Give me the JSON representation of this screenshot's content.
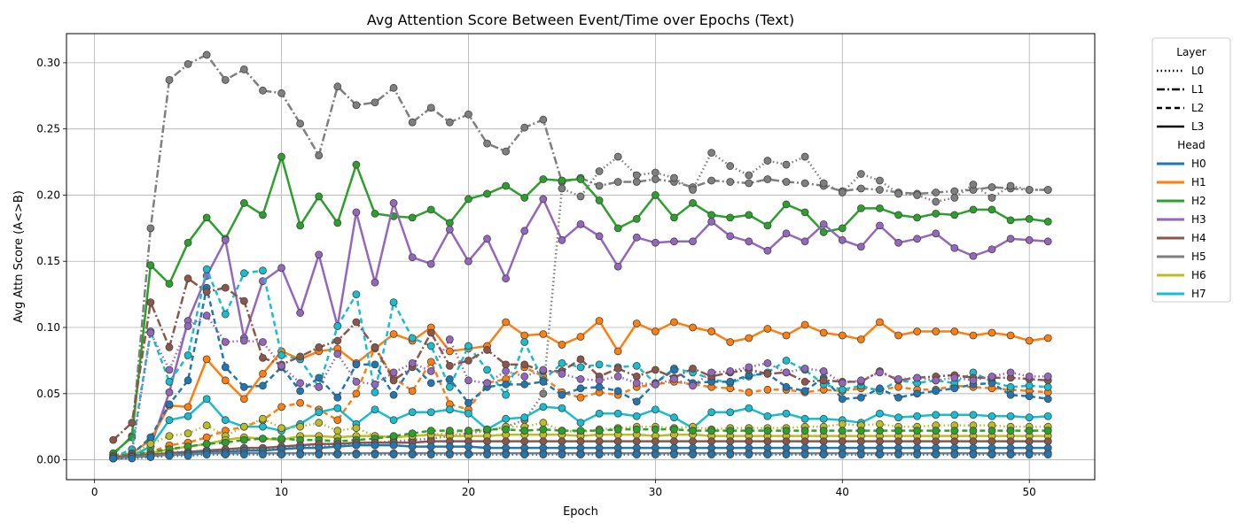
{
  "chart_data": {
    "type": "line",
    "title": "Avg Attention Score Between Event/Time over Epochs (Text)",
    "xlabel": "Epoch",
    "ylabel": "Avg Attn Score (A<>B)",
    "xlim": [
      -1.5,
      53.5
    ],
    "ylim": [
      -0.015,
      0.322
    ],
    "xticks": [
      0,
      10,
      20,
      30,
      40,
      50
    ],
    "yticks": [
      0.0,
      0.05,
      0.1,
      0.15,
      0.2,
      0.25,
      0.3
    ],
    "grid": true,
    "legend_position": "outside-right",
    "legend": {
      "layer_title": "Layer",
      "layers": [
        {
          "label": "L0",
          "dash": "dotted"
        },
        {
          "label": "L1",
          "dash": "dashdot"
        },
        {
          "label": "L2",
          "dash": "dashed"
        },
        {
          "label": "L3",
          "dash": "solid"
        }
      ],
      "head_title": "Head",
      "heads": [
        {
          "label": "H0",
          "color": "#1f77b4"
        },
        {
          "label": "H1",
          "color": "#ff7f0e"
        },
        {
          "label": "H2",
          "color": "#2ca02c"
        },
        {
          "label": "H3",
          "color": "#9467bd"
        },
        {
          "label": "H4",
          "color": "#8c564b"
        },
        {
          "label": "H5",
          "color": "#7f7f7f"
        },
        {
          "label": "H6",
          "color": "#bcbd22"
        },
        {
          "label": "H7",
          "color": "#17becf"
        }
      ]
    },
    "x": [
      1,
      2,
      3,
      4,
      5,
      6,
      7,
      8,
      9,
      10,
      11,
      12,
      13,
      14,
      15,
      16,
      17,
      18,
      19,
      20,
      21,
      22,
      23,
      24,
      25,
      26,
      27,
      28,
      29,
      30,
      31,
      32,
      33,
      34,
      35,
      36,
      37,
      38,
      39,
      40,
      41,
      42,
      43,
      44,
      45,
      46,
      47,
      48,
      49,
      50,
      51
    ],
    "series": [
      {
        "head": "H5",
        "layer": "L1",
        "values": [
          0.004,
          0.018,
          0.175,
          0.287,
          0.299,
          0.306,
          0.287,
          0.295,
          0.279,
          0.277,
          0.254,
          0.23,
          0.282,
          0.268,
          0.27,
          0.281,
          0.255,
          0.266,
          0.255,
          0.261,
          0.239,
          0.233,
          0.251,
          0.257,
          0.21,
          0.213,
          0.207,
          0.21,
          0.21,
          0.212,
          0.21,
          0.206,
          0.211,
          0.21,
          0.209,
          0.212,
          0.21,
          0.209,
          0.207,
          0.203,
          0.205,
          0.204,
          0.202,
          0.201,
          0.202,
          0.203,
          0.204,
          0.206,
          0.205,
          0.204,
          0.204
        ]
      },
      {
        "head": "H5",
        "layer": "L0",
        "values": [
          0.004,
          0.004,
          0.005,
          0.006,
          0.006,
          0.007,
          0.007,
          0.008,
          0.008,
          0.009,
          0.01,
          0.01,
          0.011,
          0.012,
          0.013,
          0.014,
          0.015,
          0.016,
          0.018,
          0.02,
          0.022,
          0.025,
          0.03,
          0.05,
          0.205,
          0.199,
          0.218,
          0.229,
          0.215,
          0.217,
          0.213,
          0.204,
          0.232,
          0.222,
          0.215,
          0.226,
          0.223,
          0.229,
          0.209,
          0.202,
          0.216,
          0.211,
          0.201,
          0.2,
          0.195,
          0.198,
          0.208,
          0.198,
          0.207,
          0.204,
          0.204
        ]
      },
      {
        "head": "H2",
        "layer": "L3",
        "values": [
          0.005,
          0.017,
          0.147,
          0.133,
          0.164,
          0.183,
          0.167,
          0.194,
          0.185,
          0.229,
          0.177,
          0.199,
          0.179,
          0.223,
          0.186,
          0.184,
          0.183,
          0.189,
          0.179,
          0.197,
          0.201,
          0.207,
          0.198,
          0.212,
          0.211,
          0.212,
          0.196,
          0.175,
          0.182,
          0.2,
          0.183,
          0.194,
          0.185,
          0.183,
          0.185,
          0.177,
          0.193,
          0.187,
          0.172,
          0.175,
          0.19,
          0.19,
          0.185,
          0.183,
          0.186,
          0.185,
          0.189,
          0.189,
          0.181,
          0.182,
          0.18
        ]
      },
      {
        "head": "H3",
        "layer": "L3",
        "values": [
          0.002,
          0.003,
          0.01,
          0.051,
          0.105,
          0.139,
          0.166,
          0.092,
          0.135,
          0.145,
          0.111,
          0.155,
          0.101,
          0.187,
          0.134,
          0.194,
          0.153,
          0.148,
          0.174,
          0.15,
          0.167,
          0.137,
          0.173,
          0.197,
          0.166,
          0.178,
          0.169,
          0.146,
          0.168,
          0.164,
          0.165,
          0.165,
          0.18,
          0.169,
          0.165,
          0.158,
          0.171,
          0.165,
          0.178,
          0.166,
          0.161,
          0.177,
          0.164,
          0.167,
          0.171,
          0.16,
          0.154,
          0.159,
          0.167,
          0.166,
          0.165
        ]
      },
      {
        "head": "H1",
        "layer": "L3",
        "values": [
          0.002,
          0.005,
          0.015,
          0.041,
          0.04,
          0.076,
          0.06,
          0.046,
          0.065,
          0.082,
          0.076,
          0.082,
          0.084,
          0.073,
          0.084,
          0.095,
          0.09,
          0.1,
          0.082,
          0.084,
          0.086,
          0.104,
          0.094,
          0.095,
          0.087,
          0.093,
          0.105,
          0.082,
          0.103,
          0.097,
          0.104,
          0.1,
          0.097,
          0.089,
          0.092,
          0.099,
          0.094,
          0.102,
          0.096,
          0.094,
          0.091,
          0.104,
          0.094,
          0.097,
          0.097,
          0.097,
          0.094,
          0.096,
          0.094,
          0.09,
          0.092
        ]
      },
      {
        "head": "H1",
        "layer": "L2",
        "values": [
          0.001,
          0.002,
          0.006,
          0.011,
          0.013,
          0.017,
          0.022,
          0.025,
          0.03,
          0.04,
          0.043,
          0.038,
          0.03,
          0.05,
          0.085,
          0.062,
          0.052,
          0.074,
          0.042,
          0.038,
          0.058,
          0.061,
          0.07,
          0.063,
          0.051,
          0.047,
          0.051,
          0.049,
          0.055,
          0.057,
          0.059,
          0.057,
          0.055,
          0.054,
          0.051,
          0.053,
          0.053,
          0.051,
          0.053,
          0.052,
          0.054,
          0.053,
          0.055,
          0.053,
          0.053,
          0.056,
          0.055,
          0.054,
          0.053,
          0.052,
          0.051
        ]
      },
      {
        "head": "H7",
        "layer": "L2",
        "values": [
          0.002,
          0.008,
          0.097,
          0.059,
          0.079,
          0.144,
          0.11,
          0.141,
          0.143,
          0.079,
          0.076,
          0.055,
          0.101,
          0.125,
          0.051,
          0.119,
          0.092,
          0.086,
          0.055,
          0.086,
          0.068,
          0.049,
          0.089,
          0.06,
          0.073,
          0.07,
          0.072,
          0.07,
          0.071,
          0.058,
          0.069,
          0.066,
          0.061,
          0.058,
          0.063,
          0.066,
          0.075,
          0.068,
          0.057,
          0.053,
          0.056,
          0.052,
          0.06,
          0.058,
          0.06,
          0.058,
          0.066,
          0.059,
          0.055,
          0.056,
          0.055
        ]
      },
      {
        "head": "H0",
        "layer": "L2",
        "values": [
          0.001,
          0.004,
          0.017,
          0.042,
          0.06,
          0.13,
          0.07,
          0.055,
          0.056,
          0.07,
          0.052,
          0.062,
          0.047,
          0.072,
          0.072,
          0.049,
          0.072,
          0.058,
          0.061,
          0.043,
          0.055,
          0.057,
          0.057,
          0.059,
          0.049,
          0.054,
          0.055,
          0.052,
          0.044,
          0.058,
          0.068,
          0.058,
          0.059,
          0.059,
          0.064,
          0.065,
          0.055,
          0.052,
          0.062,
          0.046,
          0.047,
          0.054,
          0.047,
          0.05,
          0.052,
          0.054,
          0.057,
          0.058,
          0.049,
          0.048,
          0.046
        ]
      },
      {
        "head": "H4",
        "layer": "L1",
        "values": [
          0.015,
          0.028,
          0.119,
          0.085,
          0.137,
          0.127,
          0.13,
          0.12,
          0.077,
          0.072,
          0.078,
          0.085,
          0.09,
          0.104,
          0.085,
          0.06,
          0.07,
          0.096,
          0.071,
          0.075,
          0.083,
          0.072,
          0.072,
          0.067,
          0.067,
          0.076,
          0.063,
          0.069,
          0.063,
          0.068,
          0.062,
          0.069,
          0.063,
          0.066,
          0.068,
          0.065,
          0.066,
          0.059,
          0.06,
          0.059,
          0.059,
          0.067,
          0.06,
          0.062,
          0.063,
          0.064,
          0.062,
          0.062,
          0.062,
          0.061,
          0.06
        ]
      },
      {
        "head": "H3",
        "layer": "L0",
        "values": [
          0.003,
          0.005,
          0.096,
          0.068,
          0.101,
          0.109,
          0.089,
          0.09,
          0.089,
          0.071,
          0.058,
          0.055,
          0.08,
          0.059,
          0.057,
          0.066,
          0.073,
          0.067,
          0.091,
          0.06,
          0.058,
          0.067,
          0.063,
          0.068,
          0.065,
          0.061,
          0.06,
          0.063,
          0.058,
          0.057,
          0.061,
          0.056,
          0.066,
          0.067,
          0.07,
          0.073,
          0.066,
          0.069,
          0.067,
          0.058,
          0.06,
          0.066,
          0.061,
          0.062,
          0.06,
          0.062,
          0.06,
          0.063,
          0.066,
          0.063,
          0.063
        ]
      },
      {
        "head": "H7",
        "layer": "L3",
        "values": [
          0.001,
          0.003,
          0.01,
          0.03,
          0.033,
          0.046,
          0.03,
          0.025,
          0.025,
          0.022,
          0.027,
          0.036,
          0.039,
          0.027,
          0.038,
          0.03,
          0.036,
          0.036,
          0.038,
          0.035,
          0.023,
          0.031,
          0.032,
          0.04,
          0.039,
          0.028,
          0.035,
          0.035,
          0.033,
          0.038,
          0.032,
          0.024,
          0.036,
          0.036,
          0.039,
          0.033,
          0.035,
          0.031,
          0.031,
          0.03,
          0.028,
          0.035,
          0.032,
          0.033,
          0.034,
          0.034,
          0.034,
          0.033,
          0.033,
          0.032,
          0.033
        ]
      },
      {
        "head": "H6",
        "layer": "L0",
        "values": [
          0.002,
          0.004,
          0.012,
          0.018,
          0.02,
          0.026,
          0.018,
          0.025,
          0.031,
          0.024,
          0.025,
          0.028,
          0.022,
          0.024,
          0.018,
          0.017,
          0.018,
          0.019,
          0.02,
          0.022,
          0.022,
          0.025,
          0.025,
          0.028,
          0.022,
          0.021,
          0.023,
          0.024,
          0.025,
          0.025,
          0.024,
          0.025,
          0.023,
          0.024,
          0.024,
          0.024,
          0.024,
          0.025,
          0.025,
          0.027,
          0.026,
          0.027,
          0.025,
          0.025,
          0.026,
          0.026,
          0.026,
          0.026,
          0.025,
          0.025,
          0.025
        ]
      },
      {
        "head": "H6",
        "layer": "L3",
        "values": [
          0.001,
          0.002,
          0.005,
          0.008,
          0.01,
          0.012,
          0.015,
          0.017,
          0.016,
          0.015,
          0.018,
          0.018,
          0.017,
          0.018,
          0.018,
          0.017,
          0.018,
          0.019,
          0.018,
          0.018,
          0.018,
          0.019,
          0.019,
          0.019,
          0.019,
          0.018,
          0.019,
          0.019,
          0.019,
          0.018,
          0.019,
          0.019,
          0.018,
          0.018,
          0.018,
          0.018,
          0.018,
          0.018,
          0.018,
          0.018,
          0.018,
          0.018,
          0.018,
          0.018,
          0.018,
          0.018,
          0.018,
          0.018,
          0.018,
          0.018,
          0.018
        ]
      },
      {
        "head": "H2",
        "layer": "L2",
        "values": [
          0.003,
          0.004,
          0.006,
          0.008,
          0.01,
          0.012,
          0.013,
          0.015,
          0.016,
          0.016,
          0.015,
          0.015,
          0.014,
          0.015,
          0.016,
          0.018,
          0.02,
          0.022,
          0.022,
          0.022,
          0.023,
          0.023,
          0.022,
          0.023,
          0.022,
          0.022,
          0.022,
          0.023,
          0.023,
          0.023,
          0.023,
          0.022,
          0.022,
          0.022,
          0.022,
          0.022,
          0.022,
          0.022,
          0.022,
          0.022,
          0.022,
          0.022,
          0.022,
          0.022,
          0.022,
          0.022,
          0.022,
          0.022,
          0.022,
          0.022,
          0.022
        ]
      },
      {
        "head": "H4",
        "layer": "L3",
        "values": [
          0.002,
          0.003,
          0.004,
          0.005,
          0.006,
          0.007,
          0.008,
          0.009,
          0.009,
          0.01,
          0.011,
          0.012,
          0.012,
          0.013,
          0.013,
          0.013,
          0.013,
          0.014,
          0.014,
          0.014,
          0.014,
          0.014,
          0.014,
          0.014,
          0.014,
          0.014,
          0.014,
          0.014,
          0.014,
          0.014,
          0.014,
          0.014,
          0.014,
          0.014,
          0.014,
          0.014,
          0.014,
          0.014,
          0.014,
          0.014,
          0.014,
          0.014,
          0.014,
          0.014,
          0.014,
          0.014,
          0.014,
          0.014,
          0.014,
          0.014,
          0.014
        ]
      },
      {
        "head": "H0",
        "layer": "L3",
        "values": [
          0.001,
          0.002,
          0.003,
          0.004,
          0.005,
          0.006,
          0.006,
          0.007,
          0.007,
          0.008,
          0.009,
          0.009,
          0.01,
          0.011,
          0.011,
          0.011,
          0.01,
          0.01,
          0.01,
          0.01,
          0.009,
          0.009,
          0.009,
          0.009,
          0.009,
          0.009,
          0.009,
          0.009,
          0.009,
          0.009,
          0.009,
          0.009,
          0.009,
          0.009,
          0.009,
          0.009,
          0.009,
          0.009,
          0.009,
          0.009,
          0.009,
          0.009,
          0.009,
          0.009,
          0.009,
          0.009,
          0.009,
          0.009,
          0.009,
          0.009,
          0.009
        ]
      },
      {
        "head": "H5",
        "layer": "L3",
        "values": [
          0.001,
          0.002,
          0.003,
          0.004,
          0.004,
          0.005,
          0.005,
          0.005,
          0.005,
          0.005,
          0.005,
          0.005,
          0.005,
          0.005,
          0.005,
          0.005,
          0.005,
          0.005,
          0.005,
          0.005,
          0.005,
          0.005,
          0.005,
          0.005,
          0.005,
          0.005,
          0.005,
          0.005,
          0.005,
          0.005,
          0.005,
          0.005,
          0.005,
          0.005,
          0.005,
          0.005,
          0.005,
          0.005,
          0.005,
          0.005,
          0.005,
          0.005,
          0.005,
          0.005,
          0.005,
          0.005,
          0.005,
          0.005,
          0.005,
          0.005,
          0.005
        ]
      },
      {
        "head": "H0",
        "layer": "L0",
        "values": [
          0.001,
          0.001,
          0.002,
          0.003,
          0.003,
          0.004,
          0.004,
          0.004,
          0.004,
          0.004,
          0.004,
          0.004,
          0.004,
          0.004,
          0.004,
          0.004,
          0.004,
          0.004,
          0.004,
          0.004,
          0.004,
          0.004,
          0.004,
          0.004,
          0.004,
          0.004,
          0.004,
          0.004,
          0.004,
          0.004,
          0.004,
          0.004,
          0.004,
          0.004,
          0.004,
          0.004,
          0.004,
          0.004,
          0.004,
          0.004,
          0.004,
          0.004,
          0.004,
          0.004,
          0.004,
          0.004,
          0.004,
          0.004,
          0.004,
          0.004,
          0.004
        ]
      }
    ]
  }
}
